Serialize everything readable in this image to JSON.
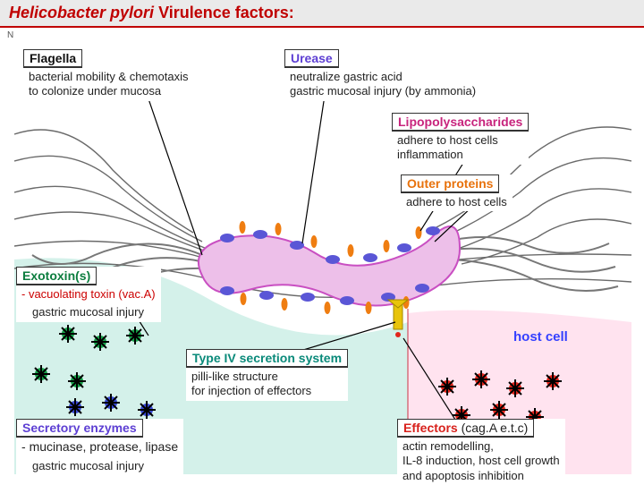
{
  "title": {
    "italic": "Helicobacter pylori",
    "normal": "  Virulence factors:"
  },
  "corner_letter": "N",
  "flagella": {
    "heading": "Flagella",
    "color": "black",
    "desc": "bacterial mobility & chemotaxis\nto colonize under mucosa"
  },
  "urease": {
    "heading": "Urease",
    "color": "purple",
    "desc": "neutralize gastric acid\ngastric mucosal injury (by ammonia)"
  },
  "lps": {
    "heading": "Lipopolysaccharides",
    "color": "magenta",
    "desc": "adhere to host cells\ninflammation"
  },
  "outer": {
    "heading": "Outer proteins",
    "color": "orange",
    "desc": "adhere to host cells"
  },
  "exotoxin": {
    "heading": "Exotoxin(s)",
    "color": "green",
    "sub": "vacuolating toxin (vac.A)",
    "desc": "gastric mucosal injury"
  },
  "type4": {
    "heading": "Type IV secretion system",
    "color": "teal",
    "desc": "pilli-like structure\nfor injection of effectors"
  },
  "secretory": {
    "heading": "Secretory enzymes",
    "color": "purple",
    "sub": "mucinase, protease, lipase",
    "desc": "gastric mucosal injury"
  },
  "effectors": {
    "heading": "Effectors",
    "heading_suffix": " (cag.A e.t.c)",
    "color": "red",
    "desc": "actin remodelling,\nIL-8 induction, host cell growth\nand apoptosis inhibition"
  },
  "host_cell": "host cell",
  "colors": {
    "bacterium_fill": "#edbfe9",
    "bacterium_stroke": "#c94fc2",
    "mucosa_stroke": "#6a6a6a",
    "cyto_fill": "#cceee6",
    "host_fill": "#ffe3ef",
    "flagella_stroke": "#777",
    "urease_fill": "#5a56d6",
    "lps_fill": "#ef7d11",
    "exotoxin_green": "#16a048",
    "vacA_blue": "#3a49d4",
    "effector_red": "#e1261c",
    "needle": "#e8c40a"
  }
}
